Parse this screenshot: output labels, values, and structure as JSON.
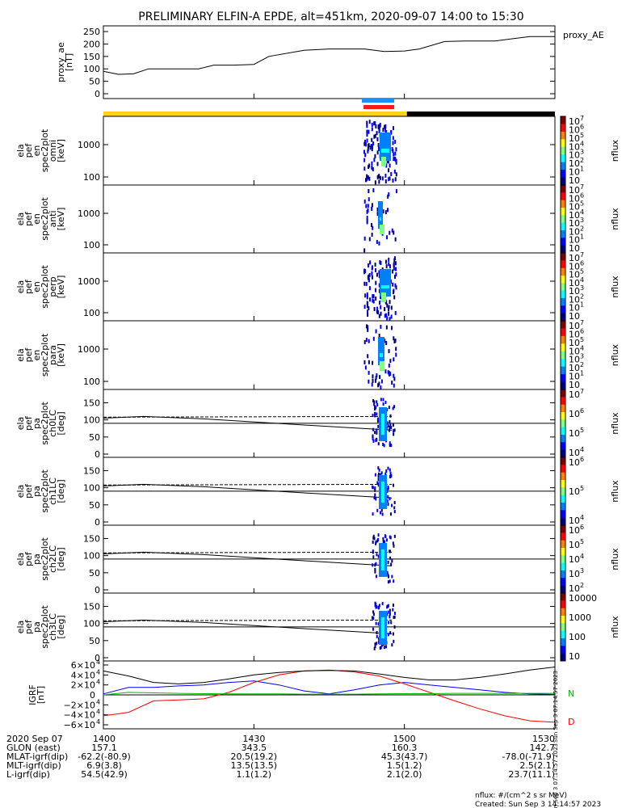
{
  "title": "PRELIMINARY ELFIN-A EPDE, alt=451km, 2020-09-07 14:00 to 15:30",
  "colors": {
    "state_yellow": "#ffd21f",
    "state_black": "#000000",
    "bar_blue": "#1e8fff",
    "bar_red": "#ff1a1a",
    "bx": "#0000ff",
    "by": "#00bb00",
    "bz": "#000000",
    "bd": "#ff0000"
  },
  "panels": {
    "ae": {
      "ylabel": [
        "proxy_ae",
        "[nT]"
      ],
      "legend": "proxy_AE",
      "yticks": [
        "250",
        "200",
        "150",
        "100",
        "50",
        "0"
      ]
    },
    "omni": {
      "ylabel": [
        "ela",
        "pef",
        "en",
        "spec2plot",
        "omni",
        "[keV]"
      ],
      "yticks": [
        "1000",
        "100"
      ]
    },
    "anti": {
      "ylabel": [
        "ela",
        "pef",
        "en",
        "spec2plot",
        "anti",
        "[keV]"
      ],
      "yticks": [
        "1000",
        "100"
      ]
    },
    "perp": {
      "ylabel": [
        "ela",
        "pef",
        "en",
        "spec2plot",
        "perp",
        "[keV]"
      ],
      "yticks": [
        "1000",
        "100"
      ]
    },
    "para": {
      "ylabel": [
        "ela",
        "pef",
        "en",
        "spec2plot",
        "para",
        "[keV]"
      ],
      "yticks": [
        "1000",
        "100"
      ]
    },
    "ch0": {
      "ylabel": [
        "ela",
        "pef",
        "pa",
        "spec2plot",
        "ch0LC",
        "[deg]"
      ],
      "yticks": [
        "150",
        "100",
        "50",
        "0"
      ]
    },
    "ch1": {
      "ylabel": [
        "ela",
        "pef",
        "pa",
        "spec2plot",
        "ch1LC",
        "[deg]"
      ],
      "yticks": [
        "150",
        "100",
        "50",
        "0"
      ]
    },
    "ch2": {
      "ylabel": [
        "ela",
        "pef",
        "pa",
        "spec2plot",
        "ch2LC",
        "[deg]"
      ],
      "yticks": [
        "150",
        "100",
        "50",
        "0"
      ]
    },
    "ch3": {
      "ylabel": [
        "ela",
        "pef",
        "pa",
        "spec2plot",
        "ch3LC",
        "[deg]"
      ],
      "yticks": [
        "150",
        "100",
        "50",
        "0"
      ]
    },
    "igrf": {
      "ylabel": [
        "IGRF",
        "[nT]"
      ],
      "yticks": [
        "6×10",
        "4×10",
        "2×10",
        "0",
        "−2×10",
        "−4×10",
        "−6×10"
      ],
      "ytick_exp": "4",
      "legend": [
        "N",
        "D"
      ]
    }
  },
  "colorbars": {
    "nflux_label": "nflux",
    "energy_ticks": [
      "10",
      "10",
      "10",
      "10",
      "10",
      "10",
      "10",
      "10"
    ],
    "energy_exps": [
      "7",
      "6",
      "5",
      "4",
      "3",
      "2",
      "1",
      ""
    ],
    "ch0_ticks": [
      "10",
      "10",
      "10",
      "10"
    ],
    "ch0_exps": [
      "7",
      "6",
      "5",
      "4"
    ],
    "ch1_ticks": [
      "10",
      "10",
      "10"
    ],
    "ch1_exps": [
      "6",
      "5",
      "4"
    ],
    "ch2_ticks": [
      "10",
      "10",
      "10",
      "10",
      "10"
    ],
    "ch2_exps": [
      "6",
      "5",
      "4",
      "3",
      "2"
    ],
    "ch3_ticks": [
      "10000",
      "1000",
      "100",
      "10"
    ]
  },
  "bottom_rows": [
    {
      "label": "2020 Sep 07",
      "values": [
        "1400",
        "1430",
        "1500",
        "1530"
      ]
    },
    {
      "label": "GLON (east)",
      "values": [
        "157.1",
        "343.5",
        "160.3",
        "142.7"
      ]
    },
    {
      "label": "MLAT-igrf(dip)",
      "values": [
        "-62.2(-80.9)",
        "20.5(19.2)",
        "45.3(43.7)",
        "-78.0(-71.9)"
      ]
    },
    {
      "label": "MLT-igrf(dip)",
      "values": [
        "6.9(3.8)",
        "13.5(13.5)",
        "1.5(1.2)",
        "2.5(2.1)"
      ]
    },
    {
      "label": "L-igrf(dip)",
      "values": [
        "54.5(42.9)",
        "1.1(1.2)",
        "2.1(2.0)",
        "23.7(11.1)"
      ]
    }
  ],
  "footer": {
    "units": "nflux: #/(cm^2 s sr MeV)",
    "created": "Created: Sun Sep  3 14:14:57 2023",
    "side_stamp": "Sun Sep  3 07:14:57 2023"
  },
  "chart_data": {
    "type": "multi-panel timeseries",
    "title": "PRELIMINARY ELFIN-A EPDE, alt=451km, 2020-09-07 14:00 to 15:30",
    "x_range": [
      "2020-09-07T14:00",
      "2020-09-07T15:30"
    ],
    "x_ticks": [
      "1400",
      "1430",
      "1500",
      "1530"
    ],
    "proxy_ae": {
      "ylim": [
        0,
        260
      ],
      "x_min": [
        0,
        3,
        6,
        9,
        14,
        19,
        22,
        26,
        30,
        33,
        40,
        45,
        52,
        56,
        60,
        63,
        68,
        72,
        78,
        85,
        90
      ],
      "values": [
        90,
        78,
        80,
        100,
        100,
        100,
        115,
        115,
        118,
        150,
        175,
        180,
        180,
        170,
        172,
        180,
        210,
        212,
        212,
        230,
        230
      ]
    },
    "science_zone_minutes": [
      57.5,
      60.5
    ],
    "pa_loss_cone_deg": {
      "x_min": [
        0,
        8,
        20,
        40,
        57.5
      ],
      "values": [
        105,
        110,
        103,
        85,
        70
      ]
    },
    "pa_antiloss_cone_deg": {
      "values": [
        110,
        112
      ]
    },
    "pa_ref_deg": 90,
    "igrf": {
      "ylim": [
        -60000,
        60000
      ],
      "x_min": [
        0,
        5,
        10,
        15,
        20,
        25,
        30,
        35,
        40,
        45,
        50,
        55,
        60,
        65,
        70,
        75,
        80,
        85,
        90
      ],
      "series": [
        {
          "name": "N",
          "values": [
            2000,
            15000,
            15000,
            18000,
            20000,
            25000,
            28000,
            20000,
            8000,
            2000,
            10000,
            20000,
            25000,
            20000,
            15000,
            10000,
            5000,
            2000,
            1000
          ]
        },
        {
          "name": "D",
          "values": [
            -42000,
            -35000,
            -12000,
            -10000,
            -8000,
            5000,
            25000,
            40000,
            48000,
            50000,
            46000,
            38000,
            22000,
            5000,
            -12000,
            -28000,
            -42000,
            -52000,
            -55000
          ]
        },
        {
          "values": [
            48000,
            38000,
            25000,
            22000,
            25000,
            32000,
            40000,
            45000,
            48000,
            49000,
            48000,
            42000,
            35000,
            30000,
            30000,
            35000,
            42000,
            50000,
            56000
          ]
        },
        {
          "values": [
            0,
            5000,
            4000,
            3000,
            2500,
            2000,
            2000,
            2000,
            1500,
            1500,
            1500,
            2000,
            2500,
            2500,
            3000,
            3000,
            3000,
            3000,
            3000
          ]
        }
      ]
    }
  }
}
